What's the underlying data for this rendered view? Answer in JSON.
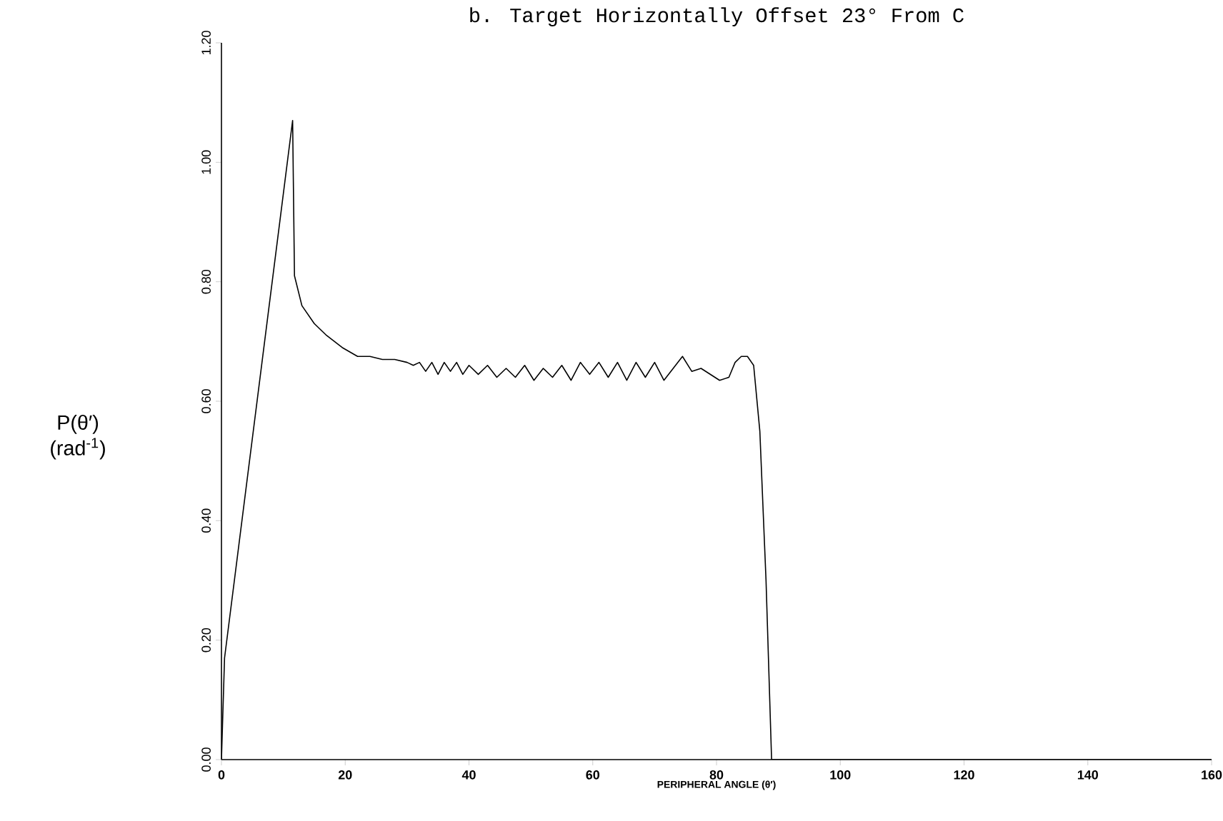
{
  "chart_data": {
    "type": "line",
    "title": "b.  Target Horizontally Offset 23° From C",
    "xlabel": "PERIPHERAL ANGLE (θ′)",
    "ylabel": "P(θ′) (rad$^{-1}$)",
    "x": [
      0,
      0.5,
      11.5,
      11.8,
      13,
      15,
      17,
      19.5,
      22,
      24,
      26,
      28,
      30,
      31,
      32,
      33,
      34,
      35,
      36,
      37,
      38,
      39,
      40,
      41.5,
      43,
      44.5,
      46,
      47.5,
      49,
      50.5,
      52,
      53.5,
      55,
      56.5,
      58,
      59.5,
      61,
      62.5,
      64,
      65.5,
      67,
      68.5,
      70,
      71.5,
      73,
      74.5,
      76,
      77.5,
      79,
      80.5,
      82,
      83,
      84,
      85,
      86,
      87,
      88,
      88.9,
      100,
      120,
      140,
      160
    ],
    "values": [
      0,
      0.17,
      1.07,
      0.81,
      0.76,
      0.73,
      0.71,
      0.69,
      0.675,
      0.675,
      0.67,
      0.67,
      0.665,
      0.66,
      0.665,
      0.65,
      0.665,
      0.645,
      0.665,
      0.65,
      0.665,
      0.645,
      0.66,
      0.645,
      0.66,
      0.64,
      0.655,
      0.64,
      0.66,
      0.635,
      0.655,
      0.64,
      0.66,
      0.635,
      0.665,
      0.645,
      0.665,
      0.64,
      0.665,
      0.635,
      0.665,
      0.64,
      0.665,
      0.635,
      0.655,
      0.675,
      0.65,
      0.655,
      0.645,
      0.635,
      0.64,
      0.665,
      0.675,
      0.675,
      0.66,
      0.55,
      0.3,
      0,
      0,
      0,
      0,
      0
    ],
    "color": "#000000",
    "xlim": [
      0,
      160
    ],
    "ylim": [
      0,
      1.2
    ],
    "xticks": [
      0,
      20,
      40,
      60,
      80,
      100,
      120,
      140,
      160
    ],
    "yticks": [
      {
        "value": 0,
        "label": "0.00"
      },
      {
        "value": 0.2,
        "label": "0.20"
      },
      {
        "value": 0.4,
        "label": "0.40"
      },
      {
        "value": 0.6,
        "label": "0.60"
      },
      {
        "value": 0.8,
        "label": "0.80"
      },
      {
        "value": 1,
        "label": "1.00"
      },
      {
        "value": 1.2,
        "label": "1.20"
      }
    ],
    "line_style": "solid",
    "marker": "none",
    "grid": false
  }
}
